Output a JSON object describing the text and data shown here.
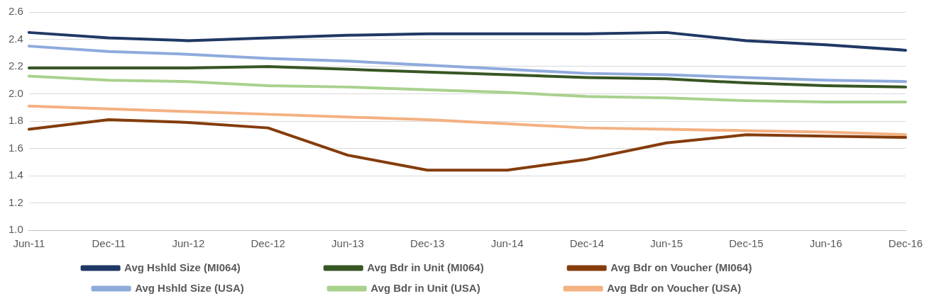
{
  "chart_data": {
    "type": "line",
    "categories": [
      "Jun-11",
      "Dec-11",
      "Jun-12",
      "Dec-12",
      "Jun-13",
      "Dec-13",
      "Jun-14",
      "Dec-14",
      "Jun-15",
      "Dec-15",
      "Jun-16",
      "Dec-16"
    ],
    "series": [
      {
        "name": "Avg Hshld Size (MI064)",
        "color": "#203864",
        "values": [
          2.45,
          2.41,
          2.39,
          2.41,
          2.43,
          2.44,
          2.44,
          2.44,
          2.45,
          2.39,
          2.36,
          2.32
        ]
      },
      {
        "name": "Avg Bdr in Unit (MI064)",
        "color": "#375623",
        "values": [
          2.19,
          2.19,
          2.19,
          2.2,
          2.18,
          2.16,
          2.14,
          2.12,
          2.11,
          2.08,
          2.06,
          2.05
        ]
      },
      {
        "name": "Avg Bdr on Voucher (MI064)",
        "color": "#843c0c",
        "values": [
          1.74,
          1.81,
          1.79,
          1.75,
          1.55,
          1.44,
          1.44,
          1.52,
          1.64,
          1.7,
          1.69,
          1.68
        ]
      },
      {
        "name": "Avg Hshld Size (USA)",
        "color": "#8faadc",
        "values": [
          2.35,
          2.31,
          2.29,
          2.26,
          2.24,
          2.21,
          2.18,
          2.15,
          2.14,
          2.12,
          2.1,
          2.09
        ]
      },
      {
        "name": "Avg Bdr in Unit (USA)",
        "color": "#a9d18e",
        "values": [
          2.13,
          2.1,
          2.09,
          2.06,
          2.05,
          2.03,
          2.01,
          1.98,
          1.97,
          1.95,
          1.94,
          1.94
        ]
      },
      {
        "name": "Avg Bdr on Voucher (USA)",
        "color": "#f4b183",
        "values": [
          1.91,
          1.89,
          1.87,
          1.85,
          1.83,
          1.81,
          1.78,
          1.75,
          1.74,
          1.73,
          1.72,
          1.7
        ]
      }
    ],
    "ylim": [
      1.0,
      2.6
    ],
    "yticks": [
      {
        "value": 1.0,
        "label": "1.0"
      },
      {
        "value": 1.2,
        "label": "1.2"
      },
      {
        "value": 1.4,
        "label": "1.4"
      },
      {
        "value": 1.6,
        "label": "1.6"
      },
      {
        "value": 1.8,
        "label": "1.8"
      },
      {
        "value": 2.0,
        "label": "2.0"
      },
      {
        "value": 2.2,
        "label": "2.2"
      },
      {
        "value": 2.4,
        "label": "2.4"
      },
      {
        "value": 2.6,
        "label": "2.6"
      }
    ],
    "grid": "y",
    "legend": "bottom",
    "marker": "none",
    "line_style": "solid"
  }
}
